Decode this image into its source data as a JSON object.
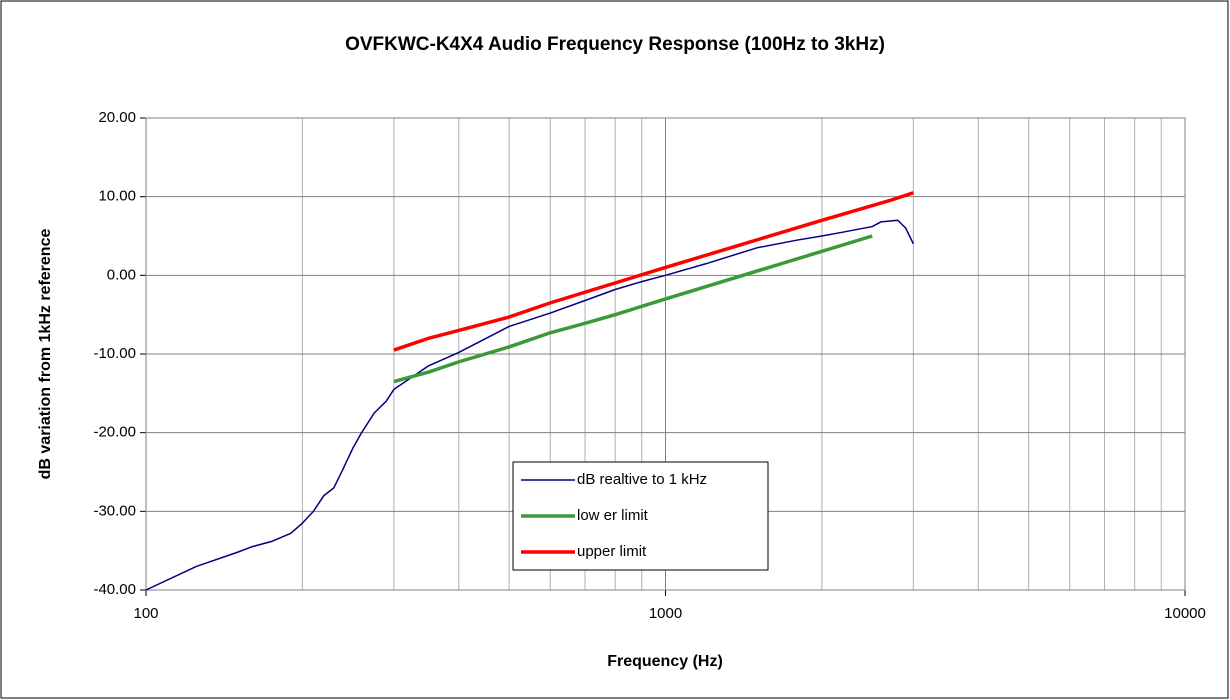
{
  "chart_data": {
    "type": "line",
    "title": "OVFKWC-K4X4 Audio Frequency Response (100Hz to 3kHz)",
    "x_label": "Frequency (Hz)",
    "y_label": "dB variation from 1kHz reference",
    "log_x": true,
    "grid": true,
    "minor_grid": true,
    "legend": "bottom-center",
    "xlim": [
      100,
      10000
    ],
    "xticks": [
      100,
      1000,
      10000
    ],
    "ylim": [
      -40,
      20
    ],
    "yticks": [
      {
        "value": -40,
        "label": "-40.00"
      },
      {
        "value": -30,
        "label": "-30.00"
      },
      {
        "value": -20,
        "label": "-20.00"
      },
      {
        "value": -10,
        "label": "-10.00"
      },
      {
        "value": 0,
        "label": "0.00"
      },
      {
        "value": 10,
        "label": "10.00"
      },
      {
        "value": 20,
        "label": "20.00"
      }
    ],
    "series": [
      {
        "name": "dB realtive to 1 kHz",
        "color": "#000080",
        "width": 1.5,
        "x": [
          100,
          125,
          150,
          160,
          175,
          190,
          200,
          210,
          220,
          230,
          240,
          250,
          260,
          275,
          290,
          300,
          350,
          400,
          500,
          600,
          700,
          800,
          900,
          1000,
          1200,
          1500,
          1800,
          2000,
          2200,
          2500,
          2600,
          2800,
          2900,
          3000
        ],
        "values": [
          -40,
          -37,
          -35.2,
          -34.5,
          -33.8,
          -32.8,
          -31.5,
          -30,
          -28,
          -27,
          -24.5,
          -22,
          -20,
          -17.5,
          -16,
          -14.5,
          -11.5,
          -9.8,
          -6.5,
          -4.8,
          -3.2,
          -1.8,
          -0.8,
          0,
          1.5,
          3.5,
          4.5,
          5,
          5.5,
          6.2,
          6.8,
          7,
          6,
          4
        ]
      },
      {
        "name": "low er limit",
        "color": "#3a9a3a",
        "width": 3.5,
        "x": [
          300,
          350,
          400,
          500,
          600,
          700,
          800,
          1000,
          2500
        ],
        "values": [
          -13.5,
          -12.3,
          -11,
          -9.1,
          -7.3,
          -6.1,
          -5,
          -3,
          5
        ]
      },
      {
        "name": "upper limit",
        "color": "#ff0000",
        "width": 3.5,
        "x": [
          300,
          350,
          400,
          500,
          600,
          1000,
          2000,
          2700,
          3000
        ],
        "values": [
          -9.5,
          -8,
          -7,
          -5.3,
          -3.5,
          1,
          7,
          9.5,
          10.5
        ]
      }
    ]
  }
}
